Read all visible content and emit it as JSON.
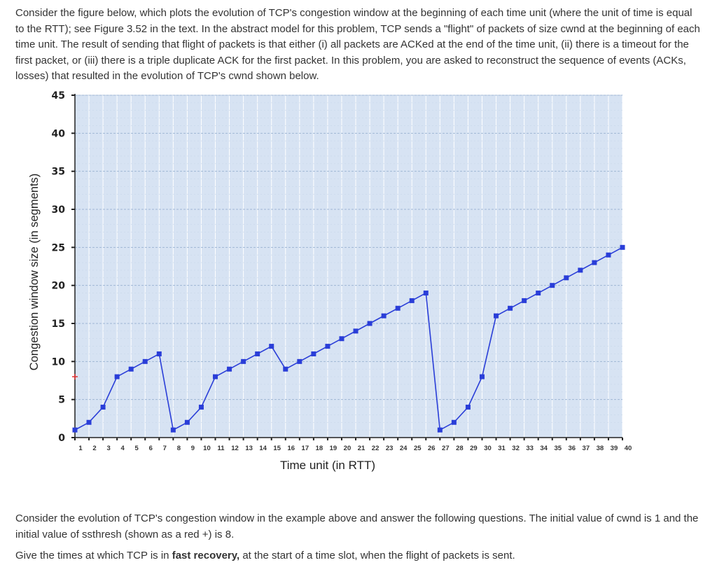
{
  "intro": {
    "text": "Consider the figure below, which plots the evolution of TCP's congestion window at the beginning of each time unit (where the unit of time is equal to the RTT); see Figure 3.52 in the text. In the abstract model for this problem, TCP sends a \"flight\" of packets of size cwnd at the beginning of each time unit. The result of sending that flight of packets is that either (i) all packets are ACKed at the end of the time unit, (ii) there is a timeout for the first packet, or (iii) there is a triple duplicate ACK for the first packet. In this problem, you are asked to reconstruct the sequence of events (ACKs, losses) that resulted in the evolution of TCP's cwnd shown below."
  },
  "chart_data": {
    "type": "line",
    "xlabel": "Time unit (in RTT)",
    "ylabel": "Congestion window size (in segments)",
    "x_ticks": [
      1,
      2,
      3,
      4,
      5,
      6,
      7,
      8,
      9,
      10,
      11,
      12,
      13,
      14,
      15,
      16,
      17,
      18,
      19,
      20,
      21,
      22,
      23,
      24,
      25,
      26,
      27,
      28,
      29,
      30,
      31,
      32,
      33,
      34,
      35,
      36,
      37,
      38,
      39,
      40
    ],
    "y_ticks": [
      0,
      5,
      10,
      15,
      20,
      25,
      30,
      35,
      40,
      45
    ],
    "xlim": [
      1,
      40
    ],
    "ylim": [
      0,
      45
    ],
    "grid": true,
    "series": [
      {
        "color": "#2a3ed8",
        "x": [
          1,
          2,
          3,
          4,
          5,
          6,
          7,
          8,
          9,
          10,
          11,
          12,
          13,
          14,
          15,
          16,
          17,
          18,
          19,
          20,
          21,
          22,
          23,
          24,
          25,
          26,
          27,
          28,
          29,
          30,
          31,
          32,
          33,
          34,
          35,
          36,
          37,
          38,
          39,
          40
        ],
        "y": [
          1,
          2,
          4,
          8,
          9,
          10,
          11,
          1,
          2,
          4,
          8,
          9,
          10,
          11,
          12,
          9,
          10,
          11,
          12,
          13,
          14,
          15,
          16,
          17,
          18,
          19,
          1,
          2,
          4,
          8,
          16,
          17,
          18,
          19,
          20,
          21,
          22,
          23,
          24,
          25
        ]
      }
    ],
    "ssthresh_marker": {
      "x": 1,
      "y": 8,
      "color": "#e03030"
    }
  },
  "questions": {
    "context": "Consider the evolution of TCP's congestion window in the example above and answer the following questions. The initial value of cwnd is 1 and the initial value of ssthresh (shown as a red +) is 8.",
    "prompt_before": "Give the times at which TCP is in ",
    "prompt_bold": "fast recovery,",
    "prompt_after": " at the start of a time slot, when the flight of packets is sent."
  }
}
